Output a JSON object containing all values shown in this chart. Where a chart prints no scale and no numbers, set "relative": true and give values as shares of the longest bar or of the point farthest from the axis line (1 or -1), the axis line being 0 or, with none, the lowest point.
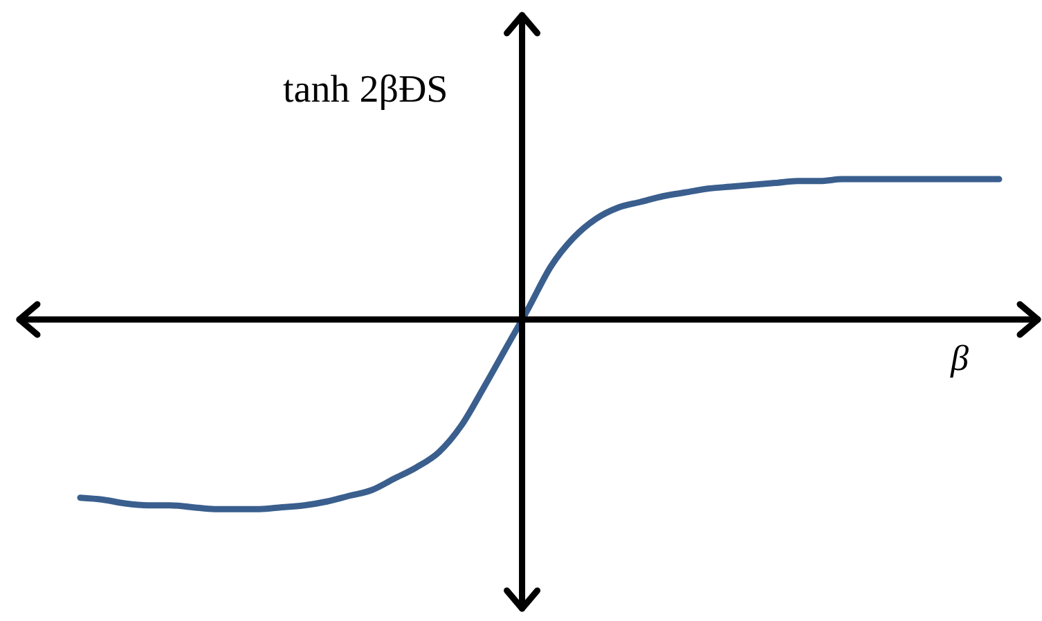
{
  "chart_data": {
    "type": "line",
    "ylabel": "tanh 2βĐS",
    "xlabel": "β",
    "relative": true,
    "categories": [
      null,
      null,
      null,
      null,
      null,
      null,
      null,
      null,
      null,
      null,
      null,
      null,
      null,
      null,
      null,
      null,
      null,
      null,
      null,
      null,
      null,
      null,
      null,
      null,
      null,
      null,
      null,
      null,
      null,
      null,
      null,
      null,
      null,
      null,
      null,
      null,
      null,
      null,
      null,
      null,
      null,
      null
    ],
    "series": [
      {
        "color": "#3a5f8e",
        "values": [
          -0.94,
          -0.95,
          -0.97,
          -0.98,
          -0.98,
          -0.99,
          -1.0,
          -1.0,
          -1.0,
          -0.99,
          -0.98,
          -0.96,
          -0.93,
          -0.9,
          -0.84,
          -0.78,
          -0.7,
          -0.56,
          -0.36,
          -0.15,
          0.06,
          0.28,
          0.43,
          0.53,
          0.59,
          0.62,
          0.65,
          0.67,
          0.69,
          0.7,
          0.71,
          0.72,
          0.73,
          0.73,
          0.74,
          0.74,
          0.74,
          0.74,
          0.74,
          0.74,
          0.74,
          0.74
        ]
      }
    ]
  }
}
